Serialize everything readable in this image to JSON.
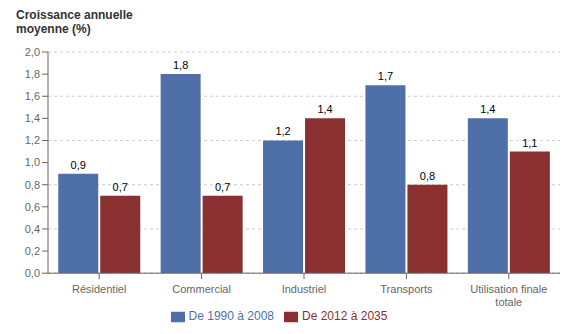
{
  "chart_data": {
    "type": "bar",
    "y_label": "Croissance annuelle\nmoyenne (%)",
    "categories": [
      "Résidentiel",
      "Commercial",
      "Industriel",
      "Transports",
      "Utilisation finale totale"
    ],
    "series": [
      {
        "name": "De 1990 à 2008",
        "color": "#4F6FA8",
        "values": [
          0.9,
          1.8,
          1.2,
          1.7,
          1.4
        ],
        "value_labels": [
          "0,9",
          "1,8",
          "1,2",
          "1,7",
          "1,4"
        ]
      },
      {
        "name": "De 2012 à 2035",
        "color": "#8B3030",
        "values": [
          0.7,
          0.7,
          1.4,
          0.8,
          1.1
        ],
        "value_labels": [
          "0,7",
          "0,7",
          "1,4",
          "0,8",
          "1,1"
        ]
      }
    ],
    "ylim": [
      0.0,
      2.0
    ],
    "yticks": [
      {
        "value": 0.0,
        "label": "0,0"
      },
      {
        "value": 0.2,
        "label": "0,2"
      },
      {
        "value": 0.4,
        "label": "0,4"
      },
      {
        "value": 0.6,
        "label": "0,6"
      },
      {
        "value": 0.8,
        "label": "0,8"
      },
      {
        "value": 1.0,
        "label": "1,0"
      },
      {
        "value": 1.2,
        "label": "1,2"
      },
      {
        "value": 1.4,
        "label": "1,4"
      },
      {
        "value": 1.6,
        "label": "1,6"
      },
      {
        "value": 1.8,
        "label": "1,8"
      },
      {
        "value": 2.0,
        "label": "2,0"
      }
    ],
    "grid": true,
    "legend": "bottom",
    "data_labels": true
  }
}
